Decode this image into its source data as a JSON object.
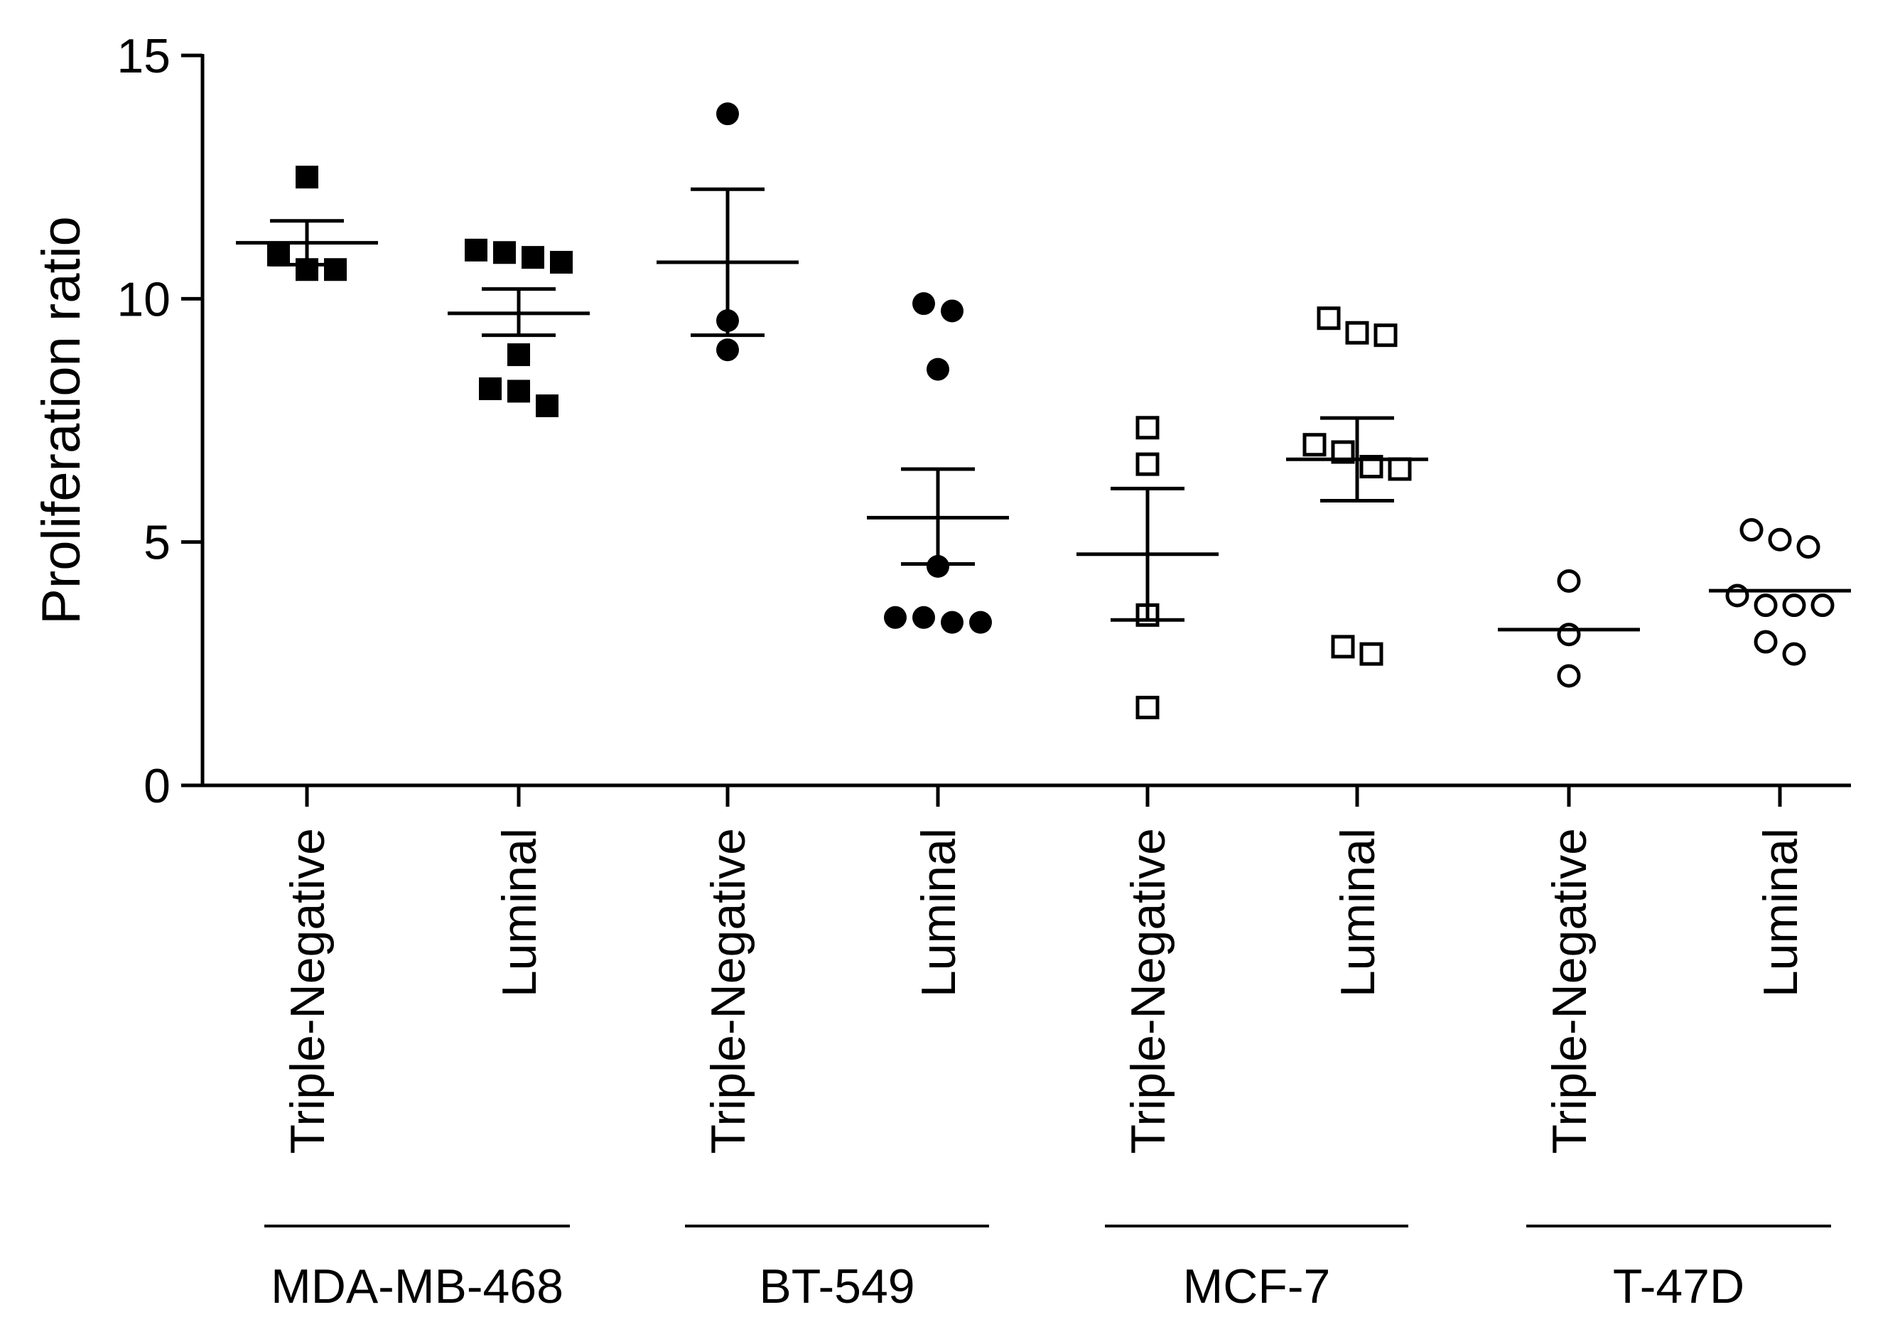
{
  "chart_data": {
    "type": "scatter",
    "title": "",
    "ylabel": "Proliferation ratio",
    "xlabel": "",
    "ylim": [
      0,
      15
    ],
    "yticks": [
      0,
      5,
      10,
      15
    ],
    "categories": [
      "Triple-Negative",
      "Luminal",
      "Triple-Negative",
      "Luminal",
      "Triple-Negative",
      "Luminal",
      "Triple-Negative",
      "Luminal"
    ],
    "groups": [
      {
        "name": "MDA-MB-468",
        "categories": [
          0,
          1
        ]
      },
      {
        "name": "BT-549",
        "categories": [
          2,
          3
        ]
      },
      {
        "name": "MCF-7",
        "categories": [
          4,
          5
        ]
      },
      {
        "name": "T-47D",
        "categories": [
          6,
          7
        ]
      }
    ],
    "series": [
      {
        "group": "MDA-MB-468",
        "category": "Triple-Negative",
        "marker": "square-filled",
        "mean": 11.15,
        "sem_low": 10.7,
        "sem_high": 11.6,
        "points": [
          12.5,
          10.9,
          10.6,
          10.6
        ]
      },
      {
        "group": "MDA-MB-468",
        "category": "Luminal",
        "marker": "square-filled",
        "mean": 9.7,
        "sem_low": 9.25,
        "sem_high": 10.2,
        "points": [
          11.0,
          10.95,
          10.85,
          10.75,
          8.85,
          8.15,
          8.1,
          7.8
        ]
      },
      {
        "group": "BT-549",
        "category": "Triple-Negative",
        "marker": "circle-filled",
        "mean": 10.75,
        "sem_low": 9.25,
        "sem_high": 12.25,
        "points": [
          13.8,
          9.55,
          8.95
        ]
      },
      {
        "group": "BT-549",
        "category": "Luminal",
        "marker": "circle-filled",
        "mean": 5.5,
        "sem_low": 4.55,
        "sem_high": 6.5,
        "points": [
          9.9,
          9.75,
          8.55,
          4.5,
          3.45,
          3.45,
          3.35,
          3.35
        ]
      },
      {
        "group": "MCF-7",
        "category": "Triple-Negative",
        "marker": "square-open",
        "mean": 4.75,
        "sem_low": 3.4,
        "sem_high": 6.1,
        "points": [
          7.35,
          6.6,
          3.5,
          1.6
        ]
      },
      {
        "group": "MCF-7",
        "category": "Luminal",
        "marker": "square-open",
        "mean": 6.7,
        "sem_low": 5.85,
        "sem_high": 7.55,
        "points": [
          9.6,
          9.3,
          9.25,
          7.0,
          6.85,
          6.55,
          6.5,
          2.85,
          2.7
        ]
      },
      {
        "group": "T-47D",
        "category": "Triple-Negative",
        "marker": "circle-open",
        "mean": 3.2,
        "sem_low": null,
        "sem_high": null,
        "points": [
          4.2,
          3.1,
          2.25
        ]
      },
      {
        "group": "T-47D",
        "category": "Luminal",
        "marker": "circle-open",
        "mean": 4.0,
        "sem_low": null,
        "sem_high": null,
        "points": [
          5.25,
          5.05,
          4.9,
          3.9,
          3.7,
          3.7,
          3.7,
          2.95,
          2.7
        ]
      }
    ]
  }
}
